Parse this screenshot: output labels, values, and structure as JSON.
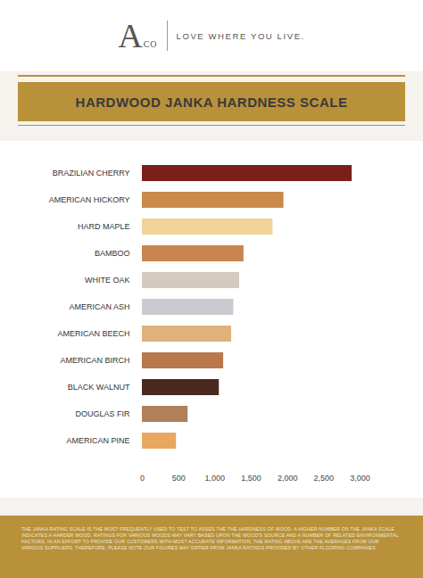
{
  "header": {
    "logo": "A",
    "logo_sub": "CO",
    "tagline": "LOVE WHERE YOU LIVE."
  },
  "chart_data": {
    "type": "bar",
    "orientation": "horizontal",
    "title": "HARDWOOD JANKA HARDNESS SCALE",
    "categories": [
      "BRAZILIAN CHERRY",
      "AMERICAN HICKORY",
      "HARD MAPLE",
      "BAMBOO",
      "WHITE OAK",
      "AMERICAN ASH",
      "AMERICAN BEECH",
      "AMERICAN BIRCH",
      "BLACK WALNUT",
      "DOUGLAS FIR",
      "AMERICAN PINE"
    ],
    "values": [
      2890,
      1950,
      1800,
      1400,
      1340,
      1260,
      1230,
      1120,
      1060,
      630,
      470
    ],
    "colors": [
      "#7a1f1a",
      "#c98a4a",
      "#f1d39a",
      "#c8864d",
      "#d3cbc0",
      "#cdc9d0",
      "#deb27a",
      "#b9784a",
      "#4a2a1e",
      "#b0805a",
      "#e8a860"
    ],
    "xlim": [
      0,
      3000
    ],
    "xticks": [
      0,
      500,
      {
        "value": 1000,
        "label": "1,000"
      },
      {
        "value": 1500,
        "label": "1,500"
      },
      {
        "value": 2000,
        "label": "2,000"
      },
      {
        "value": 2500,
        "label": "2,500"
      },
      {
        "value": 3000,
        "label": "3,000"
      }
    ],
    "grid": false
  },
  "footer": "THE JANKA RATING SCALE IS THE MOST FREQUENTLY USED TO TEST TO ASSES THE THE HARDNESS OF WOOD. A HIGHER NUMBER ON THE JANKA SCALE INDICATES A HARDER WOOD. RATINGS FOR VARIOUS WOODS MAY VARY BASED UPON THE WOOD'S SOURCE AND A NUMBER OF RELATED ENVIRONMENTAL FACTORS. IN AN EFFORT TO PROVIDE OUR CUSTOMERS WITH MOST ACCURATE INFORMATION, THE RATING ABOVE ARE THE AVERAGES FROM OUR VARIOUS SUPPLIERS. THEREFORE, PLEASE NOTE OUR FIGURES MAY DIFFER FROM JANKA RATINGS PROVIDED BY OTHER FLOORING COMPANIES"
}
